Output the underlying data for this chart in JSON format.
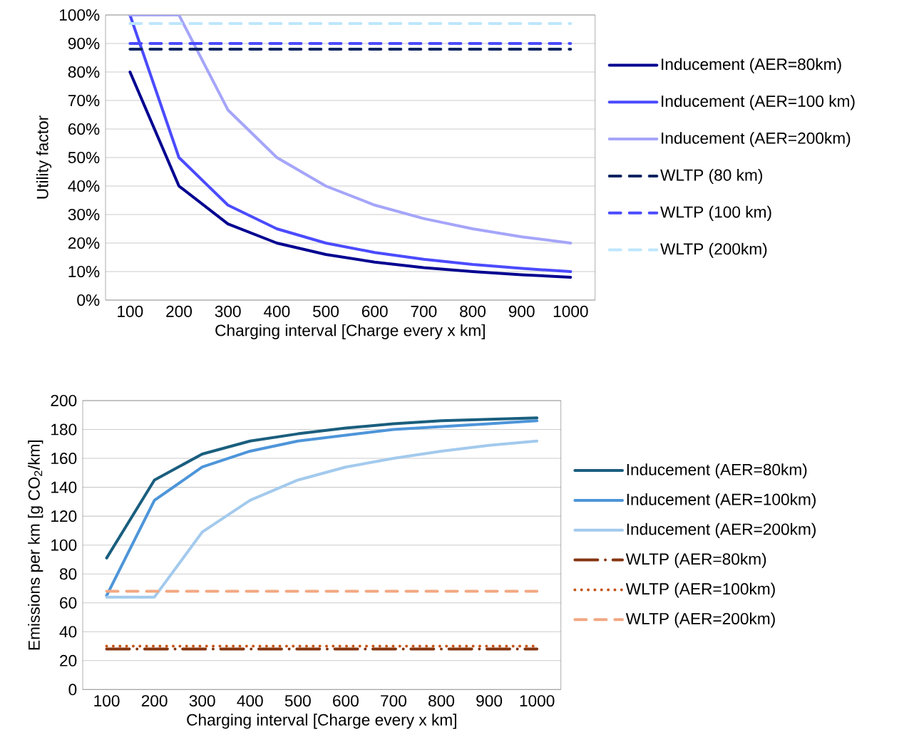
{
  "chart_data": [
    {
      "type": "line",
      "xlabel": "Charging interval [Charge every x km]",
      "ylabel": "Utility factor",
      "categories": [
        "100",
        "200",
        "300",
        "400",
        "500",
        "600",
        "700",
        "800",
        "900",
        "1000"
      ],
      "ylim": [
        0,
        100
      ],
      "yticks": [
        {
          "value": 0,
          "label": "0%"
        },
        {
          "value": 10,
          "label": "10%"
        },
        {
          "value": 20,
          "label": "20%"
        },
        {
          "value": 30,
          "label": "30%"
        },
        {
          "value": 40,
          "label": "40%"
        },
        {
          "value": 50,
          "label": "50%"
        },
        {
          "value": 60,
          "label": "60%"
        },
        {
          "value": 70,
          "label": "70%"
        },
        {
          "value": 80,
          "label": "80%"
        },
        {
          "value": 90,
          "label": "90%"
        },
        {
          "value": 100,
          "label": "100%"
        }
      ],
      "grid": "y",
      "legend": "right",
      "marker": "none",
      "series": [
        {
          "name": "Inducement (AER=80km)",
          "color": "#000090",
          "line_style": "solid",
          "values": [
            80,
            40,
            26.7,
            20,
            16,
            13.3,
            11.4,
            10,
            8.9,
            8
          ]
        },
        {
          "name": "Inducement (AER=100 km)",
          "color": "#4b4bff",
          "line_style": "solid",
          "values": [
            100,
            50,
            33.3,
            25,
            20,
            16.7,
            14.3,
            12.5,
            11.1,
            10
          ]
        },
        {
          "name": "Inducement (AER=200km)",
          "color": "#a5a5fa",
          "line_style": "solid",
          "values": [
            100,
            100,
            66.7,
            50,
            40,
            33.3,
            28.6,
            25,
            22.2,
            20
          ]
        },
        {
          "name": "WLTP (80 km)",
          "color": "#0c2460",
          "line_style": "dashed",
          "values": [
            88,
            88,
            88,
            88,
            88,
            88,
            88,
            88,
            88,
            88
          ]
        },
        {
          "name": "WLTP (100 km)",
          "color": "#4b4bff",
          "line_style": "dashed",
          "values": [
            90,
            90,
            90,
            90,
            90,
            90,
            90,
            90,
            90,
            90
          ]
        },
        {
          "name": "WLTP (200km)",
          "color": "#bde6fc",
          "line_style": "dashed",
          "values": [
            97,
            97,
            97,
            97,
            97,
            97,
            97,
            97,
            97,
            97
          ]
        }
      ]
    },
    {
      "type": "line",
      "xlabel": "Charging interval [Charge every x km]",
      "ylabel": "Emissions per km [g CO$_{2}$/km]",
      "categories": [
        "100",
        "200",
        "300",
        "400",
        "500",
        "600",
        "700",
        "800",
        "900",
        "1000"
      ],
      "ylim": [
        0,
        200
      ],
      "yticks": [
        0,
        20,
        40,
        60,
        80,
        100,
        120,
        140,
        160,
        180,
        200
      ],
      "grid": "y",
      "legend": "right",
      "marker": "none",
      "series": [
        {
          "name": "Inducement (AER=80km)",
          "color": "#1a5e7e",
          "line_style": "solid",
          "values": [
            91,
            145,
            163,
            172,
            177,
            181,
            184,
            186,
            187,
            188
          ]
        },
        {
          "name": "Inducement (AER=100km)",
          "color": "#4d95d9",
          "line_style": "solid",
          "values": [
            65,
            131,
            154,
            165,
            172,
            176,
            180,
            182,
            184,
            186
          ]
        },
        {
          "name": "Inducement (AER=200km)",
          "color": "#a3caed",
          "line_style": "solid",
          "values": [
            64,
            64,
            109,
            131,
            145,
            154,
            160,
            165,
            169,
            172
          ]
        },
        {
          "name": "WLTP (AER=80km)",
          "color": "#843510",
          "line_style": "dashdot",
          "values": [
            28,
            28,
            28,
            28,
            28,
            28,
            28,
            28,
            28,
            28
          ]
        },
        {
          "name": "WLTP (AER=100km)",
          "color": "#c65318",
          "line_style": "dotted",
          "values": [
            30,
            30,
            30,
            30,
            30,
            30,
            30,
            30,
            30,
            30
          ]
        },
        {
          "name": "WLTP (AER=200km)",
          "color": "#f2a882",
          "line_style": "dashed",
          "values": [
            68,
            68,
            68,
            68,
            68,
            68,
            68,
            68,
            68,
            68
          ]
        }
      ]
    }
  ]
}
